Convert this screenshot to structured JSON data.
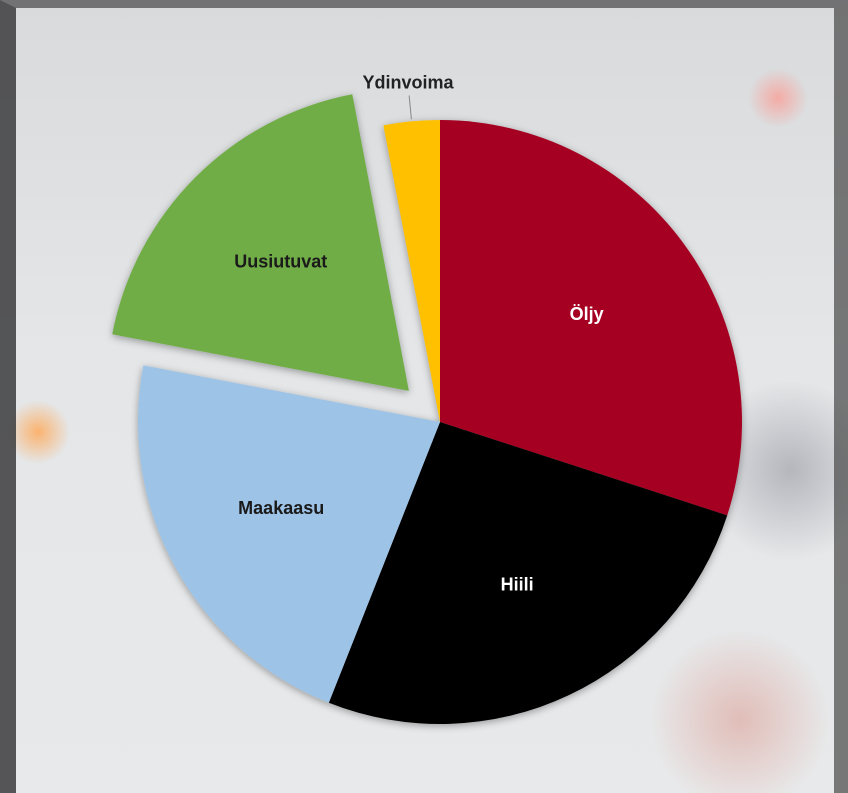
{
  "chart_data": {
    "type": "pie",
    "categories": [
      "Öljy",
      "Hiili",
      "Maakaasu",
      "Uusiutuvat",
      "Ydinvoima"
    ],
    "values": [
      30,
      26,
      22,
      19,
      3
    ],
    "colors": [
      "#a50021",
      "#000000",
      "#9dc3e6",
      "#70ad47",
      "#ffc000"
    ],
    "exploded": [
      3
    ]
  }
}
